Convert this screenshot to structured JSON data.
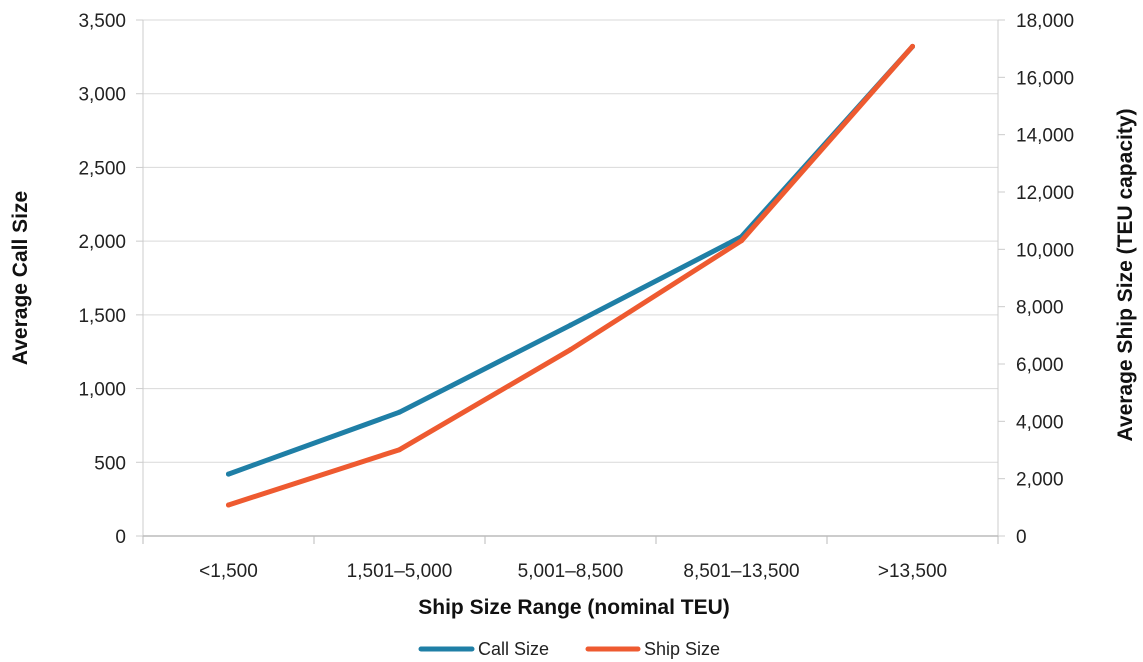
{
  "chart_data": {
    "type": "line",
    "categories": [
      "<1,500",
      "1,501–5,000",
      "5,001–8,500",
      "8,501–13,500",
      ">13,500"
    ],
    "series": [
      {
        "name": "Call Size",
        "axis": "left",
        "color": "#1f7fa6",
        "values": [
          420,
          840,
          1430,
          2030,
          3320
        ]
      },
      {
        "name": "Ship Size",
        "axis": "right",
        "color": "#ee5a30",
        "values": [
          1080,
          3010,
          6500,
          10300,
          17080
        ]
      }
    ],
    "xlabel": "Ship Size Range (nominal TEU)",
    "ylabel": "Average Call Size",
    "y2label": "Average Ship Size (TEU capacity)",
    "ylim": [
      0,
      3500
    ],
    "ytick_values": [
      0,
      500,
      1000,
      1500,
      2000,
      2500,
      3000,
      3500
    ],
    "ytick_labels": [
      "0",
      "500",
      "1,000",
      "1,500",
      "2,000",
      "2,500",
      "3,000",
      "3,500"
    ],
    "y2lim": [
      0,
      18000
    ],
    "y2tick_values": [
      0,
      2000,
      4000,
      6000,
      8000,
      10000,
      12000,
      14000,
      16000,
      18000
    ],
    "y2tick_labels": [
      "0",
      "2,000",
      "4,000",
      "6,000",
      "8,000",
      "10,000",
      "12,000",
      "14,000",
      "16,000",
      "18,000"
    ],
    "grid": true,
    "legend_position": "bottom"
  }
}
